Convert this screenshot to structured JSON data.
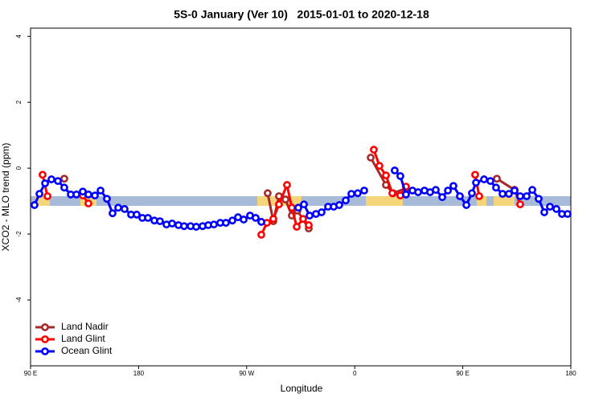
{
  "chart_data": {
    "type": "line",
    "title": "5S-0 January (Ver 10)   2015-01-01 to 2020-12-18",
    "x_label": "Longitude",
    "y_label": "XCO2 - MLO trend (ppm)",
    "xlim": [
      90,
      540
    ],
    "xticks": [
      {
        "value": 90,
        "label": "90 E"
      },
      {
        "value": 180,
        "label": "180"
      },
      {
        "value": 270,
        "label": "90 W"
      },
      {
        "value": 360,
        "label": "0"
      },
      {
        "value": 450,
        "label": "90 E"
      },
      {
        "value": 540,
        "label": "180"
      }
    ],
    "ylim": [
      -6,
      4.25
    ],
    "yticks": [
      4,
      2,
      0,
      -2,
      -4
    ],
    "legend": "bottom-left",
    "series": [
      {
        "name": "Land Nadir",
        "color": "#a52a2a",
        "x": [
          118.1,
          null,
          287.5,
          292.2,
          296.9,
          302.3,
          307.6,
          312.3,
          321.7,
          null,
          373.3,
          386.0,
          392.0,
          402.7,
          null,
          478.4,
          493.1
        ],
        "values": [
          -0.32,
          null,
          -0.76,
          -1.61,
          -0.85,
          -0.95,
          -1.44,
          -1.29,
          -1.83,
          null,
          0.32,
          -0.51,
          -0.76,
          -0.61,
          null,
          -0.32,
          -0.66
        ]
      },
      {
        "name": "Land Glint",
        "color": "#ff0000",
        "x": [
          100.0,
          104.1,
          null,
          133.5,
          138.2,
          null,
          282.2,
          286.9,
          292.2,
          296.9,
          303.6,
          307.6,
          311.7,
          317.0,
          321.7,
          null,
          375.9,
          380.6,
          386.0,
          391.3,
          398.0,
          402.7,
          null,
          460.3,
          463.7,
          null,
          493.1,
          497.8
        ],
        "values": [
          -0.2,
          -0.85,
          null,
          -0.83,
          -1.07,
          null,
          -2.02,
          -1.66,
          -1.54,
          -1.1,
          -0.51,
          -1.2,
          -1.78,
          -1.54,
          -1.73,
          null,
          0.56,
          0.07,
          -0.22,
          -0.76,
          -0.83,
          -0.56,
          null,
          -0.2,
          -0.85,
          null,
          -0.66,
          -1.1
        ]
      },
      {
        "name": "Ocean Glint",
        "color": "#0000ff",
        "x": [
          93.3,
          97.4,
          102.1,
          107.4,
          112.8,
          118.1,
          123.5,
          128.2,
          133.5,
          138.2,
          143.6,
          148.3,
          153.6,
          158.3,
          163.0,
          168.3,
          173.7,
          178.4,
          183.1,
          187.8,
          193.1,
          197.8,
          203.2,
          207.9,
          213.2,
          217.9,
          223.3,
          228.0,
          233.3,
          238.0,
          242.7,
          248.0,
          252.7,
          258.1,
          262.8,
          267.5,
          272.8,
          277.5,
          282.2,
          null,
          313.0,
          317.7,
          322.4,
          327.7,
          332.4,
          337.8,
          342.5,
          347.1,
          352.5,
          357.2,
          362.5,
          367.9,
          null,
          393.3,
          398.0,
          402.7,
          408.1,
          412.8,
          418.1,
          422.8,
          427.5,
          432.9,
          437.6,
          442.2,
          447.6,
          453.0,
          457.6,
          461.0,
          467.7,
          473.0,
          477.7,
          483.1,
          488.4,
          493.1,
          497.8,
          503.2,
          507.9,
          513.2,
          517.9,
          522.6,
          528.0,
          532.6,
          537.3
        ],
        "values": [
          -1.12,
          -0.78,
          -0.46,
          -0.34,
          -0.39,
          -0.59,
          -0.8,
          -0.8,
          -0.71,
          -0.8,
          -0.83,
          -0.68,
          -0.93,
          -1.37,
          -1.2,
          -1.24,
          -1.41,
          -1.41,
          -1.51,
          -1.51,
          -1.59,
          -1.61,
          -1.71,
          -1.68,
          -1.73,
          -1.76,
          -1.76,
          -1.78,
          -1.76,
          -1.73,
          -1.71,
          -1.66,
          -1.66,
          -1.59,
          -1.49,
          -1.56,
          -1.44,
          -1.51,
          -1.63,
          null,
          -1.2,
          -1.1,
          -1.44,
          -1.39,
          -1.34,
          -1.17,
          -1.17,
          -1.12,
          -0.98,
          -0.78,
          -0.76,
          -0.68,
          null,
          -0.07,
          -0.24,
          -0.8,
          -0.68,
          -0.73,
          -0.68,
          -0.73,
          -0.66,
          -0.88,
          -0.68,
          -0.54,
          -0.85,
          -1.12,
          -0.76,
          -0.44,
          -0.34,
          -0.39,
          -0.59,
          -0.78,
          -0.78,
          -0.68,
          -0.85,
          -0.85,
          -0.66,
          -0.93,
          -1.34,
          -1.17,
          -1.24,
          -1.39,
          -1.39
        ]
      }
    ]
  }
}
